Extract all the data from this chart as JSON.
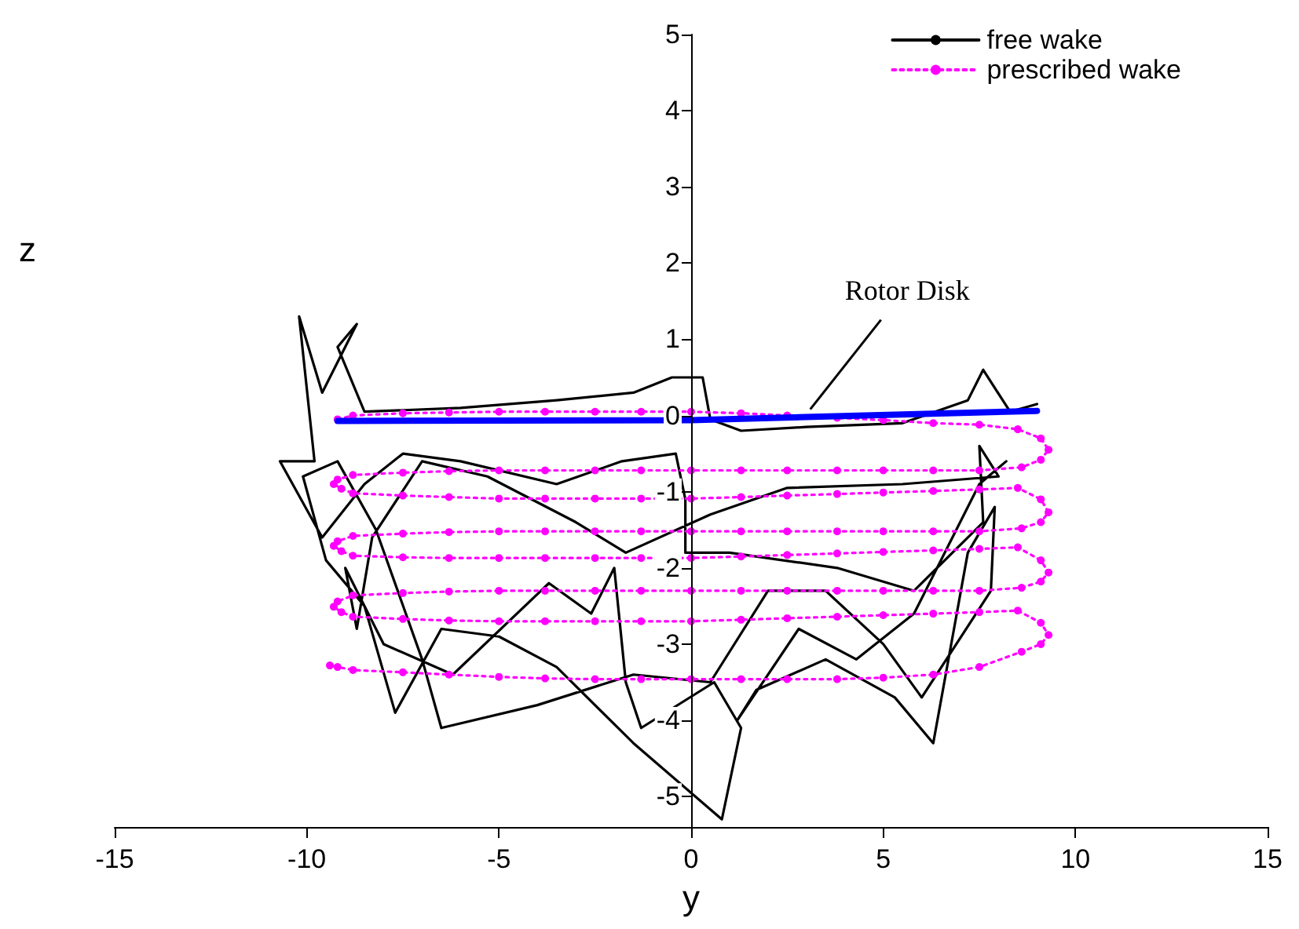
{
  "chart_data": {
    "type": "line",
    "xlabel": "y",
    "ylabel": "z",
    "xlim": [
      -15,
      15
    ],
    "ylim": [
      -5.4,
      5
    ],
    "xticks": [
      -15,
      -10,
      -5,
      0,
      5,
      10,
      15
    ],
    "yticks": [
      -5,
      -4,
      -3,
      -2,
      -1,
      0,
      1,
      2,
      3,
      4,
      5
    ],
    "grid": false,
    "legend": "top right",
    "annotations": [
      {
        "text": "Rotor Disk",
        "x": 3.1,
        "y": 0.02
      }
    ],
    "series": [
      {
        "name": "free wake",
        "color": "#000000",
        "marker": "none",
        "line_style": "solid",
        "x": [
          9,
          8.3,
          7.6,
          7.2,
          5.5,
          3,
          1.3,
          0.5,
          0.3,
          -0.5,
          -1.5,
          -3.5,
          -6,
          -8.5,
          -9.2,
          -8.7,
          -9.6,
          -10.2,
          -9.8,
          -10.7,
          -9.6,
          -8.5,
          -7.5,
          -6,
          -3.5,
          -1.8,
          -0.4,
          -0.15,
          -0.15,
          1,
          3.8,
          5.8,
          7.6,
          7.5,
          8,
          5.5,
          2.5,
          0.5,
          -1.7,
          -3,
          -5.3,
          -7,
          -8.3,
          -8.7,
          -9,
          -8,
          -6.2,
          -3.7,
          -2.6,
          -2,
          -1.7,
          -1.3,
          0.6,
          1.3,
          0.8,
          -1.5,
          -3.5,
          -5,
          -6.5,
          -7.7,
          -8.5,
          -9.5,
          -10.1,
          -9.2,
          -8.2,
          -7,
          -6.5,
          -4,
          -1.5,
          0.5,
          2,
          3.5,
          5,
          6,
          7.8,
          7.9,
          7.2,
          6.3,
          5.3,
          3.5,
          1.7,
          1.2,
          2.8,
          4.3,
          5.8,
          7.5,
          8.2
        ],
        "values": [
          0.15,
          0.05,
          0.6,
          0.2,
          -0.1,
          -0.15,
          -0.2,
          -0.05,
          0.5,
          0.5,
          0.3,
          0.2,
          0.1,
          0.05,
          0.9,
          1.2,
          0.3,
          1.3,
          -0.6,
          -0.6,
          -1.6,
          -0.9,
          -0.5,
          -0.6,
          -0.9,
          -0.6,
          -0.5,
          -1.1,
          -1.8,
          -1.8,
          -2,
          -2.3,
          -1.4,
          -0.4,
          -0.8,
          -0.9,
          -0.95,
          -1.3,
          -1.8,
          -1.4,
          -0.8,
          -0.6,
          -1.6,
          -2.8,
          -2,
          -3,
          -3.4,
          -2.2,
          -2.6,
          -2,
          -3.5,
          -4.1,
          -3.5,
          -4.1,
          -5.3,
          -4.3,
          -3.3,
          -2.9,
          -2.8,
          -3.9,
          -2.5,
          -1.9,
          -0.8,
          -0.6,
          -1.5,
          -3.2,
          -4.1,
          -3.8,
          -3.4,
          -3.5,
          -2.3,
          -2.3,
          -3,
          -3.7,
          -2.3,
          -1.2,
          -1.8,
          -4.3,
          -3.7,
          -3.2,
          -3.6,
          -4,
          -2.8,
          -3.2,
          -2.6,
          -0.9,
          -0.6
        ]
      },
      {
        "name": "prescribed wake",
        "color": "#ff00ff",
        "marker": "circle",
        "line_style": "dotted",
        "x": [
          -9.2,
          -8.8,
          -7.5,
          -6.3,
          -5,
          -3.8,
          -2.5,
          -1.3,
          0,
          1.3,
          2.5,
          3.8,
          5,
          6.3,
          7.5,
          8.5,
          9.1,
          9.3,
          9.1,
          8.6,
          7.5,
          6.3,
          5,
          3.8,
          2.5,
          1.3,
          0,
          -1.3,
          -2.5,
          -3.8,
          -5,
          -6.3,
          -7.5,
          -8.8,
          -9.2,
          -9.3,
          -9.1,
          -8.8,
          -7.5,
          -6.3,
          -5,
          -3.8,
          -2.5,
          -1.3,
          0,
          1.3,
          2.5,
          3.8,
          5,
          6.3,
          7.5,
          8.5,
          9.1,
          9.3,
          9.1,
          8.6,
          7.5,
          6.3,
          5,
          3.8,
          2.5,
          1.3,
          0,
          -1.3,
          -2.5,
          -3.8,
          -5,
          -6.3,
          -7.5,
          -8.8,
          -9.2,
          -9.3,
          -9.1,
          -8.8,
          -7.5,
          -6.3,
          -5,
          -3.8,
          -2.5,
          -1.3,
          0,
          1.3,
          2.5,
          3.8,
          5,
          6.3,
          7.5,
          8.5,
          9.1,
          9.3,
          9.1,
          8.6,
          7.5,
          6.3,
          5,
          3.8,
          2.5,
          1.3,
          0,
          -1.3,
          -2.5,
          -3.8,
          -5,
          -6.3,
          -7.5,
          -8.8,
          -9.2,
          -9.3,
          -9.1,
          -8.8,
          -7.5,
          -6.3,
          -5,
          -3.8,
          -2.5,
          -1.3,
          0,
          1.3,
          2.5,
          3.8,
          5,
          6.3,
          7.5,
          8.5,
          9.1,
          9.3,
          9.1,
          8.6,
          7.5,
          6.3,
          5,
          3.8,
          2.5,
          1.3,
          0,
          -1.3,
          -2.5,
          -3.8,
          -5,
          -6.3,
          -7.5,
          -8.8,
          -9.2,
          -9.4
        ],
        "values": [
          -0.05,
          0,
          0.03,
          0.04,
          0.05,
          0.05,
          0.05,
          0.05,
          0.05,
          0.03,
          0,
          -0.03,
          -0.06,
          -0.1,
          -0.12,
          -0.18,
          -0.3,
          -0.45,
          -0.58,
          -0.68,
          -0.72,
          -0.72,
          -0.72,
          -0.72,
          -0.72,
          -0.72,
          -0.72,
          -0.72,
          -0.72,
          -0.72,
          -0.72,
          -0.73,
          -0.75,
          -0.78,
          -0.84,
          -0.9,
          -0.96,
          -1.02,
          -1.05,
          -1.07,
          -1.09,
          -1.09,
          -1.09,
          -1.09,
          -1.09,
          -1.07,
          -1.05,
          -1.03,
          -1.01,
          -0.99,
          -0.97,
          -0.95,
          -1.1,
          -1.27,
          -1.4,
          -1.48,
          -1.52,
          -1.52,
          -1.52,
          -1.52,
          -1.52,
          -1.52,
          -1.52,
          -1.52,
          -1.52,
          -1.52,
          -1.52,
          -1.53,
          -1.55,
          -1.58,
          -1.65,
          -1.71,
          -1.78,
          -1.84,
          -1.86,
          -1.87,
          -1.87,
          -1.87,
          -1.87,
          -1.87,
          -1.87,
          -1.85,
          -1.83,
          -1.81,
          -1.79,
          -1.77,
          -1.75,
          -1.73,
          -1.9,
          -2.06,
          -2.18,
          -2.26,
          -2.3,
          -2.3,
          -2.3,
          -2.3,
          -2.3,
          -2.3,
          -2.3,
          -2.3,
          -2.3,
          -2.3,
          -2.3,
          -2.31,
          -2.33,
          -2.36,
          -2.44,
          -2.51,
          -2.58,
          -2.64,
          -2.67,
          -2.69,
          -2.7,
          -2.7,
          -2.7,
          -2.7,
          -2.7,
          -2.68,
          -2.66,
          -2.64,
          -2.62,
          -2.6,
          -2.58,
          -2.56,
          -2.72,
          -2.88,
          -3,
          -3.1,
          -3.3,
          -3.4,
          -3.44,
          -3.46,
          -3.46,
          -3.46,
          -3.46,
          -3.46,
          -3.46,
          -3.45,
          -3.43,
          -3.4,
          -3.37,
          -3.34,
          -3.3,
          -3.28
        ]
      },
      {
        "color": "#0000ff",
        "marker": "none",
        "line_style": "solid",
        "x": [
          -9.2,
          0,
          9
        ],
        "values": [
          -0.07,
          -0.06,
          0.06
        ]
      }
    ]
  }
}
